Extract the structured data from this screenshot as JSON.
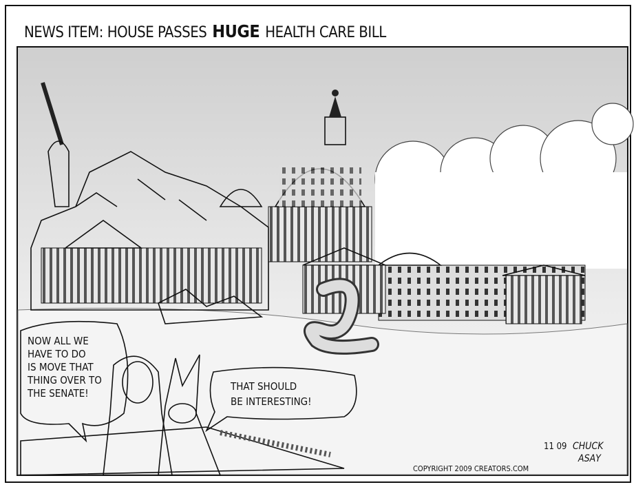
{
  "title": {
    "prefix": "NEWS ITEM: HOUSE PASSES",
    "emphasis": "HUGE",
    "suffix": "HEALTH CARE BILL"
  },
  "bubbles": [
    {
      "lines": [
        "NOW ALL WE",
        "HAVE TO DO",
        "IS MOVE THAT",
        "THING OVER TO",
        "THE SENATE!"
      ]
    },
    {
      "lines": [
        "THAT SHOULD",
        "BE INTERESTING!"
      ]
    }
  ],
  "signature": {
    "date": "11 09",
    "artist": [
      "CHUCK",
      "ASAY"
    ]
  },
  "copyright": "COPYRIGHT 2009 CREATORS.COM"
}
